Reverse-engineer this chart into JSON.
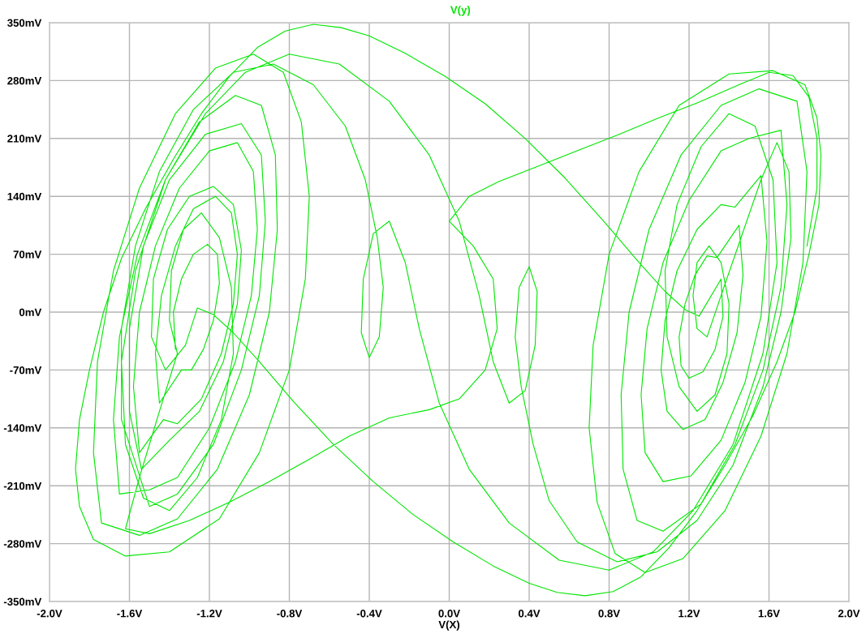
{
  "chart_data": {
    "type": "line",
    "xlabel": "V(X)",
    "xlim": [
      -2.0,
      2.0
    ],
    "ylim": [
      -350,
      350
    ],
    "xticks": [
      {
        "value": -2.0,
        "label": "-2.0V"
      },
      {
        "value": -1.6,
        "label": "-1.6V"
      },
      {
        "value": -1.2,
        "label": "-1.2V"
      },
      {
        "value": -0.8,
        "label": "-0.8V"
      },
      {
        "value": -0.4,
        "label": "-0.4V"
      },
      {
        "value": 0.0,
        "label": "0.0V"
      },
      {
        "value": 0.4,
        "label": "0.4V"
      },
      {
        "value": 0.8,
        "label": "0.8V"
      },
      {
        "value": 1.2,
        "label": "1.2V"
      },
      {
        "value": 1.6,
        "label": "1.6V"
      },
      {
        "value": 2.0,
        "label": "2.0V"
      }
    ],
    "yticks": [
      {
        "value": -350,
        "label": "-350mV"
      },
      {
        "value": -280,
        "label": "-280mV"
      },
      {
        "value": -210,
        "label": "-210mV"
      },
      {
        "value": -140,
        "label": "-140mV"
      },
      {
        "value": -70,
        "label": "-70mV"
      },
      {
        "value": 0,
        "label": "0mV"
      },
      {
        "value": 70,
        "label": "70mV"
      },
      {
        "value": 140,
        "label": "140mV"
      },
      {
        "value": 210,
        "label": "210mV"
      },
      {
        "value": 280,
        "label": "280mV"
      },
      {
        "value": 350,
        "label": "350mV"
      }
    ],
    "grid": true,
    "line_style": "solid",
    "series": [
      {
        "name": "V(y)",
        "color": "#00e600",
        "x": [
          -1.37,
          -1.38,
          -1.34,
          -1.28,
          -1.21,
          -1.16,
          -1.15,
          -1.18,
          -1.23,
          -1.29,
          -1.34,
          -1.45,
          -1.47,
          -1.44,
          -1.37,
          -1.28,
          -1.17,
          -1.09,
          -1.06,
          -1.08,
          -1.14,
          -1.24,
          -1.36,
          -1.43,
          -1.55,
          -1.58,
          -1.55,
          -1.47,
          -1.35,
          -1.2,
          -1.06,
          -0.98,
          -0.96,
          -0.99,
          -1.07,
          -1.2,
          -1.36,
          -1.5,
          -1.65,
          -1.68,
          -1.65,
          -1.56,
          -1.42,
          -1.25,
          -1.07,
          -0.94,
          -0.87,
          -0.86,
          -0.9,
          -1.0,
          -1.16,
          -1.36,
          -1.55,
          -1.74,
          -1.78,
          -1.76,
          -1.68,
          -1.55,
          -1.37,
          -1.17,
          -0.98,
          -0.83,
          -0.74,
          -0.7,
          -0.72,
          -0.8,
          -0.95,
          -1.15,
          -1.4,
          -1.62,
          -1.78,
          -1.85,
          -1.87,
          -1.85,
          -1.8,
          -1.73,
          -1.64,
          -1.52,
          -1.38,
          -1.24,
          -1.1,
          -0.96,
          -0.82,
          -0.68,
          -0.54,
          -0.4,
          -0.22,
          -0.02,
          0.18,
          0.38,
          0.58,
          0.78,
          0.95,
          1.08,
          1.18,
          1.25,
          1.36,
          1.37,
          1.33,
          1.27,
          1.2,
          1.16,
          1.15,
          1.18,
          1.23,
          1.29,
          1.34,
          1.45,
          1.47,
          1.44,
          1.37,
          1.28,
          1.17,
          1.09,
          1.06,
          1.08,
          1.14,
          1.24,
          1.36,
          1.43,
          1.56,
          1.59,
          1.56,
          1.48,
          1.36,
          1.21,
          1.07,
          0.98,
          0.96,
          0.99,
          1.07,
          1.2,
          1.36,
          1.5,
          1.66,
          1.69,
          1.66,
          1.57,
          1.43,
          1.26,
          1.07,
          0.94,
          0.87,
          0.86,
          0.9,
          1.0,
          1.16,
          1.36,
          1.55,
          1.74,
          1.79,
          1.77,
          1.69,
          1.56,
          1.38,
          1.17,
          0.98,
          0.83,
          0.74,
          0.7,
          0.72,
          0.8,
          0.95,
          1.15,
          1.4,
          1.62,
          1.78,
          1.84,
          1.86,
          1.85,
          1.8,
          1.73,
          1.64,
          1.52,
          1.38,
          1.24,
          1.1,
          0.96,
          0.82,
          0.68,
          0.54,
          0.4,
          0.22,
          0.02,
          -0.18,
          -0.38,
          -0.58,
          -0.78,
          -0.95,
          -1.08,
          -1.18,
          -1.26,
          -1.32,
          -1.42,
          -1.49,
          -1.48,
          -1.41,
          -1.3,
          -1.18,
          -1.08,
          -1.04,
          -1.06,
          -1.13,
          -1.25,
          -1.4,
          -1.54,
          -1.6,
          -1.6,
          -1.53,
          -1.4,
          -1.22,
          -1.04,
          -0.94,
          -0.92,
          -0.95,
          -1.04,
          -1.18,
          -1.36,
          -1.5,
          -1.64,
          -1.64,
          -1.57,
          -1.45,
          -1.28,
          -1.08,
          -0.88,
          -0.68,
          -0.52,
          -0.42,
          -0.36,
          -0.33,
          -0.35,
          -0.4,
          -0.44,
          -0.43,
          -0.38,
          -0.3,
          -0.22,
          -0.15,
          -0.05,
          0.1,
          0.3,
          0.55,
          0.8,
          1.02,
          1.22,
          1.42,
          1.57,
          1.64,
          1.62,
          1.53,
          1.4,
          1.26,
          1.14,
          1.08,
          1.09,
          1.15,
          1.24,
          1.33,
          1.39,
          1.4,
          1.36,
          1.3,
          1.24,
          1.22,
          1.24,
          1.29,
          1.36,
          1.46,
          1.56,
          1.64,
          1.7,
          1.71,
          1.66,
          1.57,
          1.42,
          1.24,
          1.04,
          0.84,
          0.64,
          0.5,
          0.42,
          0.36,
          0.33,
          0.35,
          0.4,
          0.44,
          0.43,
          0.38,
          0.3,
          0.22,
          0.15,
          0.05,
          -0.1,
          -0.3,
          -0.55,
          -0.8,
          -1.02,
          -1.22,
          -1.42,
          -1.57,
          -1.64,
          -1.62,
          -1.53,
          -1.4,
          -1.26,
          -1.14,
          -1.08,
          -1.09,
          -1.15,
          -1.24,
          -1.33,
          -1.39,
          -1.4,
          -1.36,
          -1.45,
          -1.55,
          -1.62,
          -1.5,
          -1.3,
          -1.1,
          -0.9,
          -0.7,
          -0.5,
          -0.3,
          -0.1,
          0.05,
          0.18,
          0.24,
          0.22,
          0.12,
          0.0,
          0.1,
          0.25,
          0.45,
          0.65,
          0.85,
          1.05,
          1.25,
          1.45,
          1.6,
          1.72,
          1.8,
          1.84,
          1.84,
          1.79
        ],
        "values": [
          -45,
          0,
          40,
          70,
          82,
          70,
          35,
          -10,
          -45,
          -70,
          -70,
          -110,
          -50,
          20,
          80,
          125,
          140,
          120,
          70,
          10,
          -50,
          -105,
          -135,
          -130,
          -170,
          -90,
          0,
          80,
          150,
          195,
          205,
          170,
          100,
          20,
          -60,
          -140,
          -200,
          -215,
          -220,
          -130,
          -30,
          70,
          160,
          230,
          262,
          250,
          190,
          100,
          0,
          -100,
          -190,
          -250,
          -270,
          -255,
          -170,
          -60,
          50,
          150,
          240,
          295,
          312,
          290,
          230,
          140,
          40,
          -70,
          -170,
          -250,
          -290,
          -295,
          -275,
          -235,
          -190,
          -130,
          -70,
          0,
          65,
          125,
          185,
          240,
          285,
          320,
          340,
          348,
          344,
          334,
          313,
          285,
          252,
          210,
          162,
          108,
          60,
          25,
          3,
          -5,
          40,
          -5,
          -45,
          -72,
          -80,
          -65,
          -30,
          10,
          45,
          68,
          66,
          105,
          45,
          -25,
          -85,
          -130,
          -142,
          -120,
          -70,
          -10,
          50,
          100,
          130,
          127,
          165,
          85,
          -5,
          -85,
          -155,
          -198,
          -205,
          -170,
          -100,
          -20,
          60,
          135,
          195,
          210,
          220,
          130,
          30,
          -70,
          -160,
          -232,
          -265,
          -252,
          -190,
          -100,
          0,
          100,
          190,
          250,
          270,
          255,
          170,
          60,
          -50,
          -150,
          -240,
          -298,
          -315,
          -292,
          -230,
          -140,
          -40,
          70,
          170,
          250,
          288,
          292,
          275,
          235,
          190,
          130,
          70,
          0,
          -60,
          -125,
          -185,
          -240,
          -285,
          -320,
          -338,
          -343,
          -339,
          -328,
          -307,
          -278,
          -245,
          -205,
          -160,
          -108,
          -60,
          -25,
          -3,
          5,
          -40,
          -70,
          -30,
          40,
          100,
          140,
          152,
          130,
          75,
          10,
          -60,
          -120,
          -155,
          -190,
          -120,
          -20,
          80,
          160,
          215,
          228,
          190,
          110,
          20,
          -70,
          -160,
          -220,
          -235,
          -130,
          -20,
          80,
          170,
          245,
          290,
          300,
          275,
          225,
          160,
          90,
          30,
          -30,
          -55,
          -25,
          40,
          95,
          110,
          60,
          -20,
          -110,
          -190,
          -255,
          -300,
          -312,
          -290,
          -240,
          -160,
          -50,
          60,
          160,
          225,
          240,
          200,
          130,
          50,
          -30,
          -90,
          -120,
          -100,
          -50,
          10,
          60,
          80,
          60,
          20,
          -20,
          -30,
          20,
          90,
          160,
          205,
          170,
          90,
          0,
          -90,
          -185,
          -252,
          -290,
          -302,
          -278,
          -228,
          -160,
          -90,
          -30,
          30,
          55,
          25,
          -40,
          -95,
          -110,
          -60,
          20,
          110,
          190,
          255,
          300,
          312,
          290,
          240,
          160,
          50,
          -60,
          -160,
          -225,
          -240,
          -200,
          -130,
          -50,
          30,
          90,
          120,
          100,
          50,
          -10,
          -50,
          -120,
          -200,
          -262,
          -268,
          -252,
          -230,
          -205,
          -178,
          -150,
          -128,
          -118,
          -105,
          -70,
          -20,
          40,
          80,
          110,
          140,
          158,
          177,
          196,
          215,
          235,
          254,
          275,
          290,
          286,
          260,
          210,
          150,
          80
        ]
      }
    ]
  }
}
